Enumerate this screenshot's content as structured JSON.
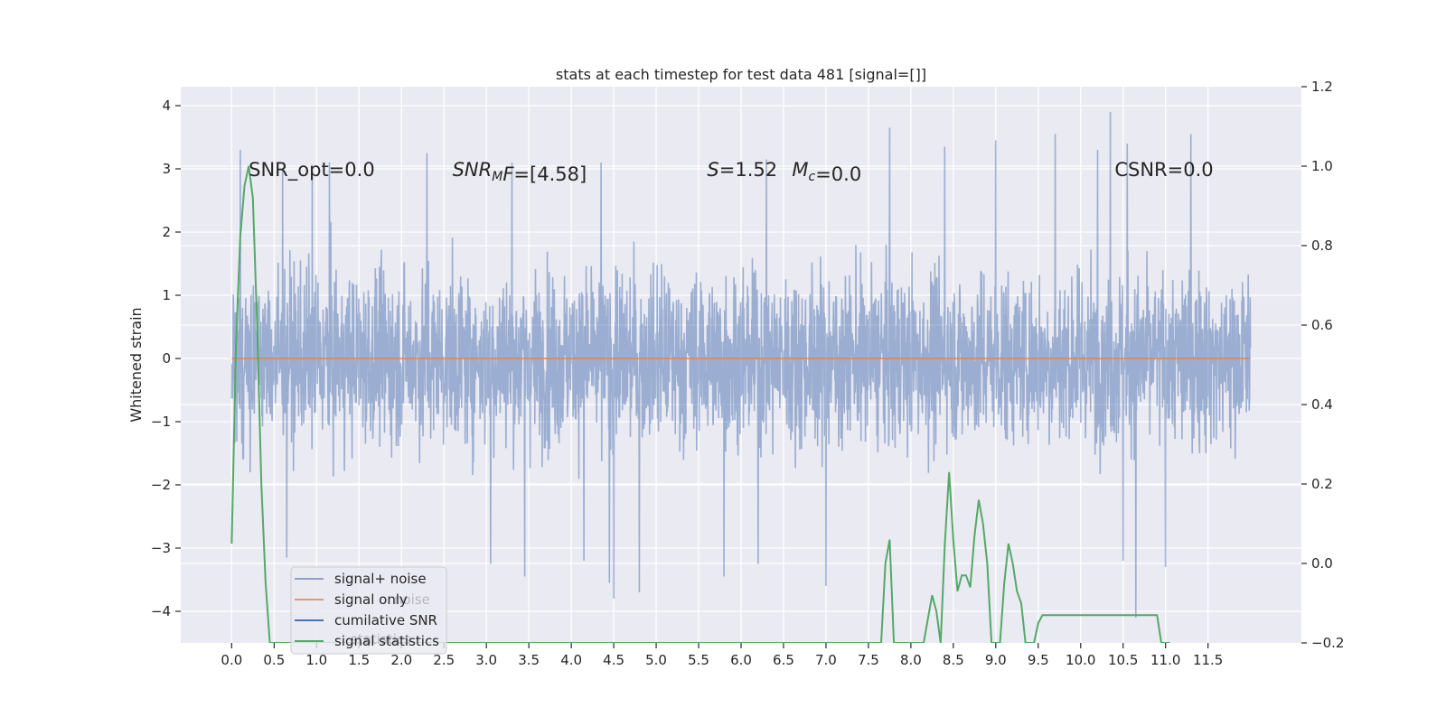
{
  "chart_data": {
    "type": "line",
    "title": "stats at each timestep for test data 481 [signal=[]]",
    "ylabel": "Whitened strain",
    "xlabel": "",
    "xlim": [
      -0.6,
      12.6
    ],
    "ylim": [
      -4.5,
      4.3
    ],
    "y2lim": [
      -0.2,
      1.2
    ],
    "grid": true,
    "background": "#eaeaf2",
    "x_ticks": [
      0.0,
      0.5,
      1.0,
      1.5,
      2.0,
      2.5,
      3.0,
      3.5,
      4.0,
      4.5,
      5.0,
      5.5,
      6.0,
      6.5,
      7.0,
      7.5,
      8.0,
      8.5,
      9.0,
      9.5,
      10.0,
      10.5,
      11.0,
      11.5
    ],
    "x_tick_labels": [
      "0.0",
      "0.5",
      "1.0",
      "1.5",
      "2.0",
      "2.5",
      "3.0",
      "3.5",
      "4.0",
      "4.5",
      "5.0",
      "5.5",
      "6.0",
      "6.5",
      "7.0",
      "7.5",
      "8.0",
      "8.5",
      "9.0",
      "9.5",
      "10.0",
      "10.5",
      "11.0",
      "11.5"
    ],
    "y_ticks": [
      -4,
      -3,
      -2,
      -1,
      0,
      1,
      2,
      3,
      4
    ],
    "y_tick_labels": [
      "−4",
      "−3",
      "−2",
      "−1",
      "0",
      "1",
      "2",
      "3",
      "4"
    ],
    "y2_ticks": [
      -0.2,
      0.0,
      0.2,
      0.4,
      0.6,
      0.8,
      1.0,
      1.2
    ],
    "y2_tick_labels": [
      "−0.2",
      "0.0",
      "0.2",
      "0.4",
      "0.6",
      "0.8",
      "1.0",
      "1.2"
    ],
    "series": [
      {
        "name": "signal+ noise",
        "axis": "left",
        "color": "#4c72b0",
        "opacity": 0.5,
        "x_range": [
          0.0,
          12.0
        ],
        "description_of_values": "white-noise whitened strain, roughly within [-1.8, 1.8] with spikes up to about 3.9 and down to about -4.1",
        "spikes": [
          {
            "x": 0.1,
            "y": 3.3
          },
          {
            "x": 0.6,
            "y": 3.0
          },
          {
            "x": 0.95,
            "y": 3.05
          },
          {
            "x": 1.15,
            "y": 3.1
          },
          {
            "x": 2.3,
            "y": 3.25
          },
          {
            "x": 3.3,
            "y": 3.1
          },
          {
            "x": 4.35,
            "y": 3.1
          },
          {
            "x": 6.3,
            "y": 3.15
          },
          {
            "x": 7.75,
            "y": 3.65
          },
          {
            "x": 8.4,
            "y": 3.35
          },
          {
            "x": 9.0,
            "y": 3.45
          },
          {
            "x": 9.7,
            "y": 3.55
          },
          {
            "x": 10.2,
            "y": 3.3
          },
          {
            "x": 10.35,
            "y": 3.9
          },
          {
            "x": 10.55,
            "y": 3.4
          },
          {
            "x": 11.3,
            "y": 3.55
          },
          {
            "x": 0.65,
            "y": -3.15
          },
          {
            "x": 3.05,
            "y": -3.25
          },
          {
            "x": 3.45,
            "y": -3.45
          },
          {
            "x": 4.15,
            "y": -3.2
          },
          {
            "x": 4.45,
            "y": -3.55
          },
          {
            "x": 4.5,
            "y": -3.8
          },
          {
            "x": 4.8,
            "y": -3.7
          },
          {
            "x": 5.8,
            "y": -3.45
          },
          {
            "x": 6.2,
            "y": -3.25
          },
          {
            "x": 7.0,
            "y": -3.6
          },
          {
            "x": 10.5,
            "y": -3.2
          },
          {
            "x": 10.65,
            "y": -4.1
          },
          {
            "x": 11.0,
            "y": -3.3
          }
        ]
      },
      {
        "name": "signal only",
        "axis": "left",
        "color": "#dd8452",
        "x": [
          0.0,
          12.0
        ],
        "y": [
          0.0,
          0.0
        ]
      },
      {
        "name": "cumilative SNR",
        "axis": "right",
        "color": "#4c72b0",
        "x": [],
        "y": []
      },
      {
        "name": "signal statistics",
        "axis": "right",
        "color": "#55a868",
        "x": [
          0.0,
          0.05,
          0.1,
          0.15,
          0.2,
          0.25,
          0.3,
          0.35,
          0.4,
          0.45,
          7.65,
          7.7,
          7.75,
          7.8,
          8.15,
          8.2,
          8.25,
          8.3,
          8.35,
          8.4,
          8.45,
          8.5,
          8.55,
          8.6,
          8.65,
          8.7,
          8.75,
          8.8,
          8.85,
          8.9,
          8.95,
          9.0,
          9.05,
          9.1,
          9.15,
          9.2,
          9.25,
          9.3,
          9.35,
          9.4,
          9.45,
          9.5,
          9.55,
          10.9,
          10.95,
          11.0,
          11.05
        ],
        "y": [
          0.05,
          0.55,
          0.82,
          0.95,
          1.0,
          0.92,
          0.6,
          0.2,
          -0.05,
          -0.2,
          -0.2,
          0.0,
          0.06,
          -0.2,
          -0.2,
          -0.14,
          -0.08,
          -0.12,
          -0.2,
          0.05,
          0.23,
          0.06,
          -0.07,
          -0.03,
          -0.03,
          -0.06,
          0.07,
          0.16,
          0.1,
          0.0,
          -0.2,
          -0.2,
          -0.2,
          -0.05,
          0.05,
          0.0,
          -0.07,
          -0.1,
          -0.2,
          -0.2,
          -0.2,
          -0.15,
          -0.13,
          -0.13,
          -0.2,
          -0.2,
          -0.2
        ]
      }
    ],
    "annotations": [
      {
        "x": 0.2,
        "y": 3.0,
        "text": "SNR_opt=0.0"
      },
      {
        "x": 2.6,
        "y": 3.0,
        "parts": [
          {
            "t": "SNR",
            "i": true
          },
          {
            "t": "M",
            "i": true,
            "sub": true
          },
          {
            "t": "F",
            "i": true
          },
          {
            "t": "=[4.58]",
            "i": false
          }
        ]
      },
      {
        "x": 5.6,
        "y": 3.0,
        "parts": [
          {
            "t": "S",
            "i": true
          },
          {
            "t": "=1.52",
            "i": false
          }
        ]
      },
      {
        "x": 6.6,
        "y": 3.0,
        "parts": [
          {
            "t": "M",
            "i": true
          },
          {
            "t": "c",
            "i": true,
            "sub": true
          },
          {
            "t": "=0.0",
            "i": false
          }
        ]
      },
      {
        "x": 10.4,
        "y": 3.0,
        "text": "CSNR=0.0"
      }
    ],
    "legend": {
      "placement": "lower-left",
      "entries": [
        "signal+ noise",
        "signal only",
        "cumilative SNR",
        "signal statistics"
      ],
      "ghost_entries": [
        "noise",
        "statistics"
      ]
    }
  }
}
